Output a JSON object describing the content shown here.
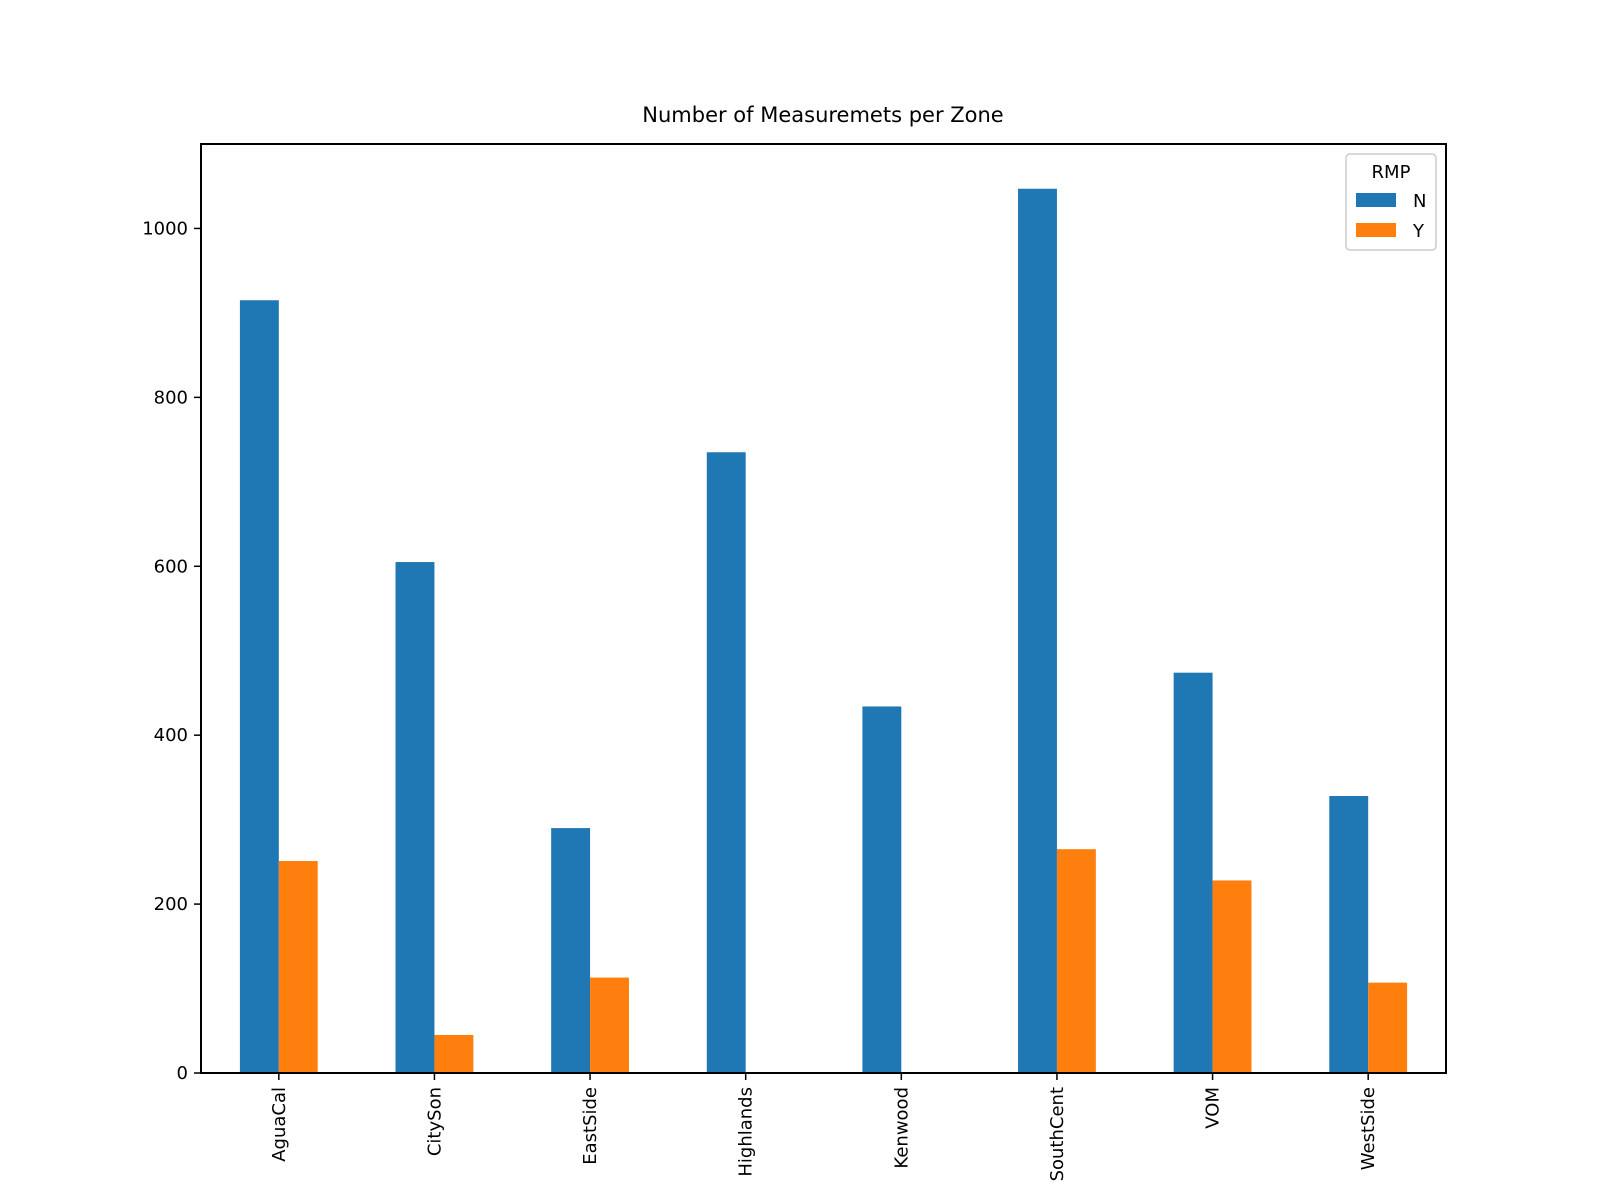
{
  "chart_data": {
    "type": "bar",
    "title": "Number of Measuremets per Zone",
    "xlabel": "",
    "ylabel": "",
    "categories": [
      "AguaCal",
      "CitySon",
      "EastSide",
      "Highlands",
      "Kenwood",
      "SouthCent",
      "VOM",
      "WestSide"
    ],
    "series": [
      {
        "name": "N",
        "color": "#1f77b4",
        "values": [
          915,
          605,
          290,
          735,
          434,
          1047,
          474,
          328
        ]
      },
      {
        "name": "Y",
        "color": "#ff7f0e",
        "values": [
          251,
          45,
          113,
          0,
          0,
          265,
          228,
          107
        ]
      }
    ],
    "ylim": [
      0,
      1100
    ],
    "yticks": [
      0,
      200,
      400,
      600,
      800,
      1000
    ],
    "grid": false,
    "legend": {
      "title": "RMP",
      "placement": "top-right"
    }
  }
}
